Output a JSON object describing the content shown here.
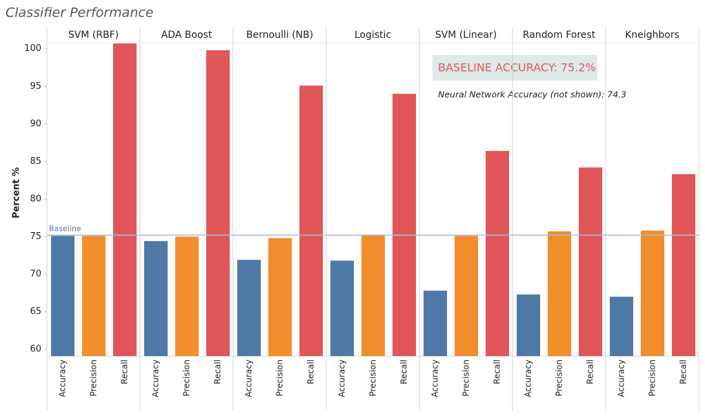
{
  "chart_data": {
    "type": "bar",
    "title": "Classifier Performance",
    "y_label": "Percent %",
    "categories": [
      "SVM (RBF)",
      "ADA Boost",
      "Bernoulli (NB)",
      "Logistic",
      "SVM (Linear)",
      "Random Forest",
      "Kneighbors"
    ],
    "series": [
      {
        "name": "Accuracy",
        "color": "#4e79a7",
        "values": [
          75.1,
          74.4,
          71.9,
          71.8,
          67.8,
          67.3,
          67.0
        ]
      },
      {
        "name": "Precision",
        "color": "#f28e2b",
        "values": [
          75.1,
          75.0,
          74.8,
          75.2,
          75.1,
          75.7,
          75.8
        ]
      },
      {
        "name": "Recall",
        "color": "#e15759",
        "values": [
          100.7,
          99.8,
          95.1,
          94.0,
          86.4,
          84.2,
          83.3
        ]
      }
    ],
    "ylim": [
      59.1,
      100.8
    ],
    "yticks": [
      60,
      65,
      70,
      75,
      80,
      85,
      90,
      95,
      100
    ],
    "grid": false,
    "reference_line": {
      "label": "Baseline",
      "value": 75.2,
      "color": "#a9bcd9"
    },
    "annotations": [
      "BASELINE ACCURACY: 75.2%",
      "Neural Network Accuracy (not shown): 74.3"
    ]
  }
}
